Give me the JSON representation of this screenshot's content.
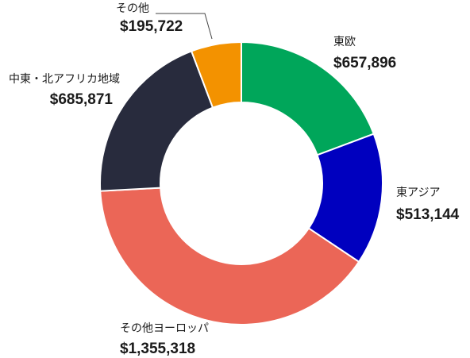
{
  "chart_data": {
    "type": "pie",
    "donut": true,
    "categories": [
      "東欧",
      "東アジア",
      "その他ヨーロッパ",
      "中東・北アフリカ地域",
      "その他"
    ],
    "values": [
      657896,
      513144,
      1355318,
      685871,
      195722
    ],
    "value_labels": [
      "$657,896",
      "$513,144",
      "$1,355,318",
      "$685,871",
      "$195,722"
    ],
    "colors": [
      "#00a65a",
      "#0000bf",
      "#eb6657",
      "#282b3d",
      "#f39200"
    ],
    "legend": "none",
    "title": ""
  }
}
